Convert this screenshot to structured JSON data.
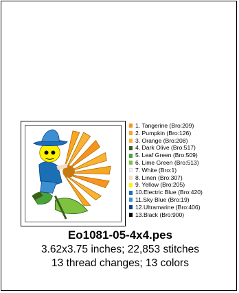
{
  "design": {
    "title": "Eo1081-05-4x4.pes",
    "size_stitches": "3.62x3.75 inches; 22,853 stitches",
    "changes_colors": "13 thread changes; 13 colors"
  },
  "threads": [
    {
      "label": "1.  Tangerine (Bro:209)",
      "color": "#f7941d"
    },
    {
      "label": "2.  Pumpkin (Bro:126)",
      "color": "#f7a823"
    },
    {
      "label": "3.  Orange (Bro:208)",
      "color": "#f9b233"
    },
    {
      "label": "4.  Dark Olive (Bro:517)",
      "color": "#3b5e1b"
    },
    {
      "label": "5.  Leaf Green (Bro:509)",
      "color": "#4aa33a"
    },
    {
      "label": "6.  Lime Green (Bro:513)",
      "color": "#7fc241"
    },
    {
      "label": "7.  White (Bro:1)",
      "color": "#f4f4f4"
    },
    {
      "label": "8.  Linen (Bro:307)",
      "color": "#f6dcc0"
    },
    {
      "label": "9.  Yellow (Bro:205)",
      "color": "#fff200"
    },
    {
      "label": "10.Electric Blue (Bro:420)",
      "color": "#1b6fb5"
    },
    {
      "label": "11.Sky Blue (Bro:19)",
      "color": "#3c8fd0"
    },
    {
      "label": "12.Ultramarine (Bro:406)",
      "color": "#0d3f8f"
    },
    {
      "label": "13.Black (Bro:900)",
      "color": "#000000"
    }
  ]
}
